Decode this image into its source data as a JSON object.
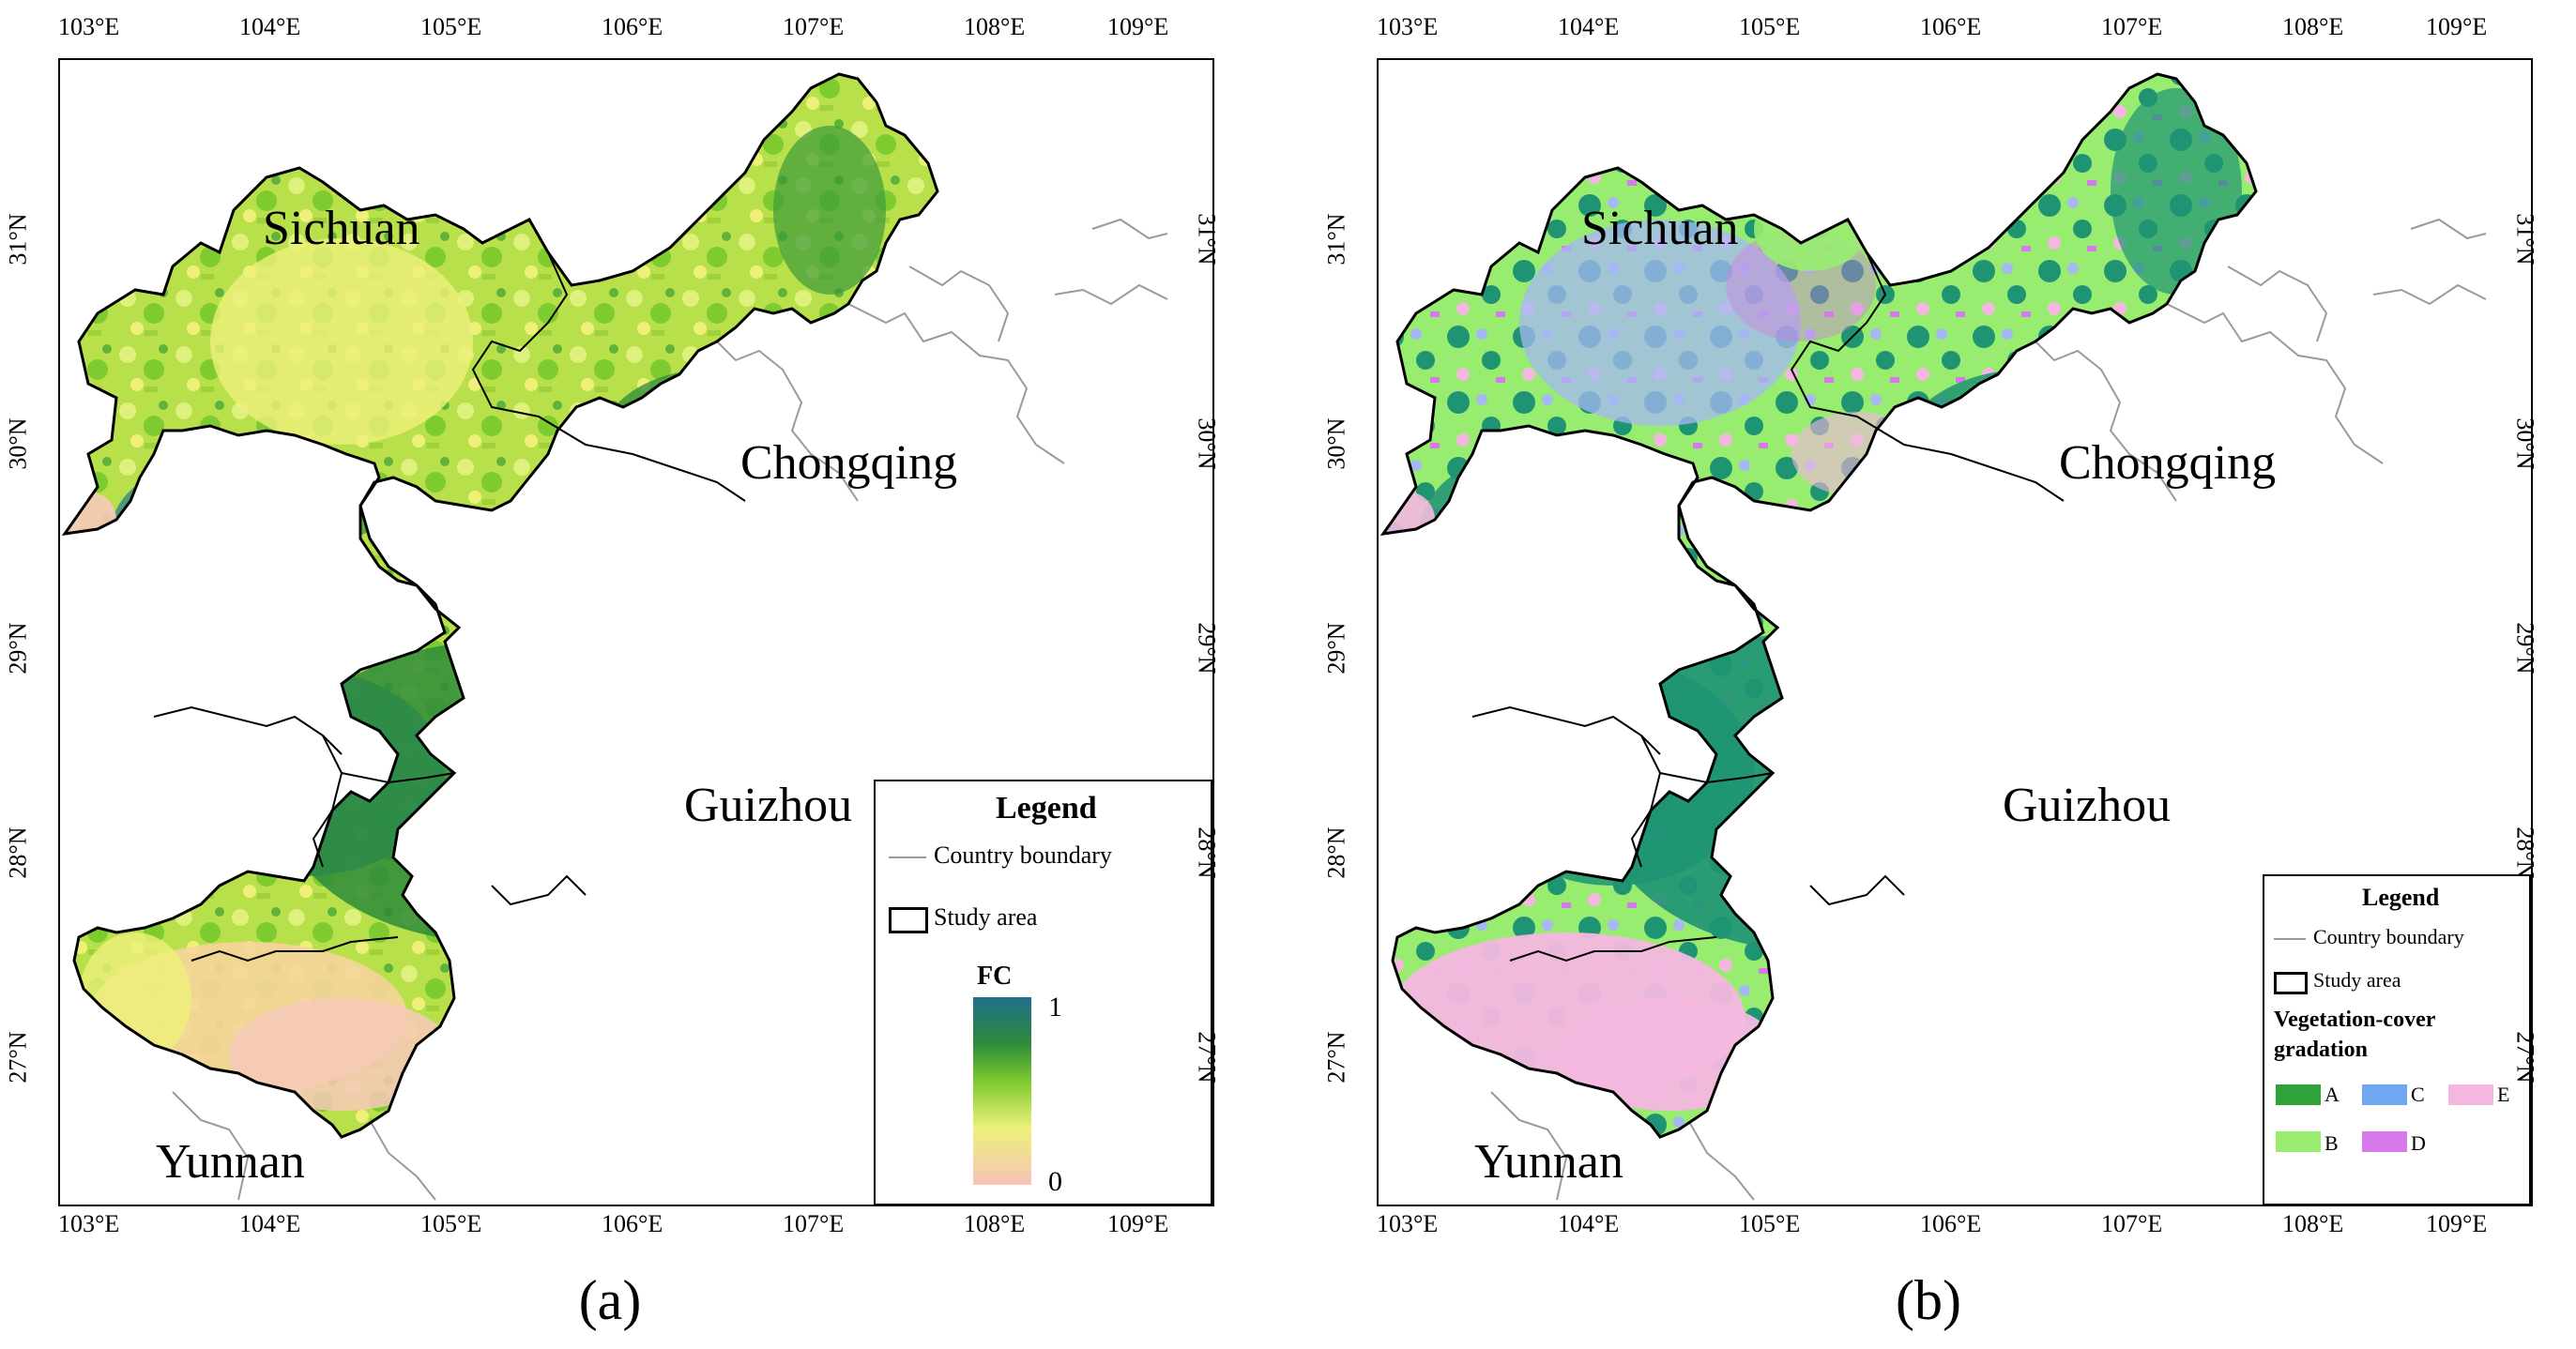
{
  "longitudes": [
    "103°E",
    "104°E",
    "105°E",
    "106°E",
    "107°E",
    "108°E",
    "109°E"
  ],
  "latitudes": [
    "31°N",
    "30°N",
    "29°N",
    "28°N",
    "27°N"
  ],
  "region_labels": {
    "sichuan": "Sichuan",
    "chongqing": "Chongqing",
    "guizhou": "Guizhou",
    "yunnan": "Yunnan"
  },
  "panel_a": {
    "caption": "(a)",
    "legend": {
      "title": "Legend",
      "boundary_label": "Country boundary",
      "study_area_label": "Study area",
      "scale_title": "FC",
      "scale_max": "1",
      "scale_min": "0"
    }
  },
  "panel_b": {
    "caption": "(b)",
    "legend": {
      "title": "Legend",
      "boundary_label": "Country boundary",
      "study_area_label": "Study area",
      "classes_title_line1": "Vegetation-cover",
      "classes_title_line2": "gradation",
      "classes": [
        {
          "label": "A",
          "color": "#2fa33a"
        },
        {
          "label": "C",
          "color": "#6fa8f0"
        },
        {
          "label": "E",
          "color": "#f4b8e0"
        },
        {
          "label": "B",
          "color": "#98ec70"
        },
        {
          "label": "D",
          "color": "#d57ae8"
        }
      ]
    }
  },
  "colors": {
    "fc_high": "#1f7a8c",
    "fc_mid_high": "#2e8b3a",
    "fc_mid": "#7ecb2f",
    "fc_mid_low": "#eef07a",
    "fc_low": "#f7c9b8",
    "boundary_line": "#9a9a9a",
    "study_area_line": "#000000",
    "grad_a": "#1e9473"
  }
}
